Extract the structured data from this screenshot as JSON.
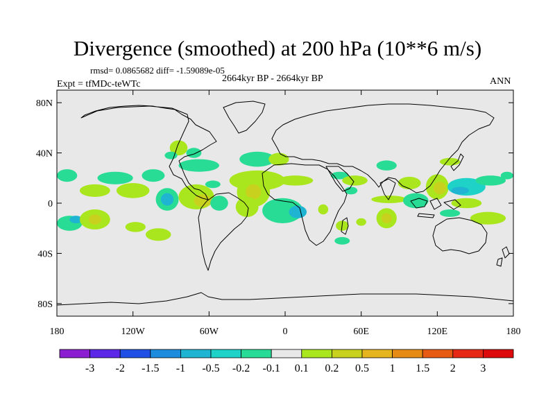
{
  "chart_data": {
    "type": "heatmap",
    "title": "Divergence (smoothed) at 200 hPa (10**6 m/s)",
    "stats_text": "rmsd= 0.0865682 diff= -1.59089e-05",
    "subtitle": "2664kyr BP - 2664kyr BP",
    "left_label": "Expt = tfMDc-teWTc",
    "right_label": "ANN",
    "x_range": [
      -180,
      180
    ],
    "y_range": [
      -90,
      90
    ],
    "x_ticks": [
      {
        "value": -180,
        "label": "180"
      },
      {
        "value": -120,
        "label": "120W"
      },
      {
        "value": -60,
        "label": "60W"
      },
      {
        "value": 0,
        "label": "0"
      },
      {
        "value": 60,
        "label": "60E"
      },
      {
        "value": 120,
        "label": "120E"
      },
      {
        "value": 180,
        "label": "180"
      }
    ],
    "y_ticks": [
      {
        "value": 80,
        "label": "80N"
      },
      {
        "value": 40,
        "label": "40N"
      },
      {
        "value": 0,
        "label": "0"
      },
      {
        "value": -40,
        "label": "40S"
      },
      {
        "value": -80,
        "label": "80S"
      }
    ],
    "colorbar": {
      "levels": [
        "-3",
        "-2",
        "-1.5",
        "-1",
        "-0.5",
        "-0.2",
        "-0.1",
        "0.1",
        "0.2",
        "0.5",
        "1",
        "1.5",
        "2",
        "3"
      ],
      "colors": [
        "#8c1ed2",
        "#5a28e6",
        "#1e50e6",
        "#1e8cdc",
        "#1eb4d2",
        "#1ed2c8",
        "#28dc96",
        "#e8e8e8",
        "#aae61e",
        "#c8d21e",
        "#e6b41e",
        "#e68c14",
        "#e65a14",
        "#e62814",
        "#dc0a0a"
      ]
    },
    "regions": [
      {
        "lon": -84,
        "lat": 44,
        "rlon": 7,
        "rlat": 6,
        "color_index": 8
      },
      {
        "lon": -90,
        "lat": 38,
        "rlon": 5,
        "rlat": 3,
        "color_index": 6
      },
      {
        "lon": -72,
        "lat": 40,
        "rlon": 6,
        "rlat": 4,
        "color_index": 6
      },
      {
        "lon": -68,
        "lat": 30,
        "rlon": 16,
        "rlat": 5,
        "color_index": 6
      },
      {
        "lon": -104,
        "lat": 22,
        "rlon": 9,
        "rlat": 5,
        "color_index": 6
      },
      {
        "lon": -134,
        "lat": 20,
        "rlon": 14,
        "rlat": 5,
        "color_index": 6
      },
      {
        "lon": -172,
        "lat": 22,
        "rlon": 8,
        "rlat": 5,
        "color_index": 6
      },
      {
        "lon": -170,
        "lat": -16,
        "rlon": 10,
        "rlat": 6,
        "color_index": 6
      },
      {
        "lon": -165,
        "lat": -13,
        "rlon": 5,
        "rlat": 3,
        "color_index": 4
      },
      {
        "lon": -150,
        "lat": -13,
        "rlon": 12,
        "rlat": 8,
        "color_index": 8
      },
      {
        "lon": -150,
        "lat": -13,
        "rlon": 5,
        "rlat": 4,
        "color_index": 9
      },
      {
        "lon": -118,
        "lat": -19,
        "rlon": 8,
        "rlat": 4,
        "color_index": 8
      },
      {
        "lon": -100,
        "lat": -25,
        "rlon": 10,
        "rlat": 5,
        "color_index": 8
      },
      {
        "lon": -150,
        "lat": 10,
        "rlon": 12,
        "rlat": 5,
        "color_index": 8
      },
      {
        "lon": -120,
        "lat": 10,
        "rlon": 13,
        "rlat": 6,
        "color_index": 8
      },
      {
        "lon": -93,
        "lat": 3,
        "rlon": 9,
        "rlat": 9,
        "color_index": 6
      },
      {
        "lon": -93,
        "lat": 3,
        "rlon": 5,
        "rlat": 5,
        "color_index": 4
      },
      {
        "lon": -70,
        "lat": 5,
        "rlon": 14,
        "rlat": 10,
        "color_index": 8
      },
      {
        "lon": -65,
        "lat": 2,
        "rlon": 7,
        "rlat": 5,
        "color_index": 9
      },
      {
        "lon": -52,
        "lat": 0,
        "rlon": 7,
        "rlat": 6,
        "color_index": 6
      },
      {
        "lon": -57,
        "lat": 15,
        "rlon": 6,
        "rlat": 3,
        "color_index": 6
      },
      {
        "lon": -22,
        "lat": 35,
        "rlon": 14,
        "rlat": 6,
        "color_index": 6
      },
      {
        "lon": -5,
        "lat": 35,
        "rlon": 8,
        "rlat": 5,
        "color_index": 8
      },
      {
        "lon": -22,
        "lat": 18,
        "rlon": 22,
        "rlat": 8,
        "color_index": 8
      },
      {
        "lon": -25,
        "lat": 9,
        "rlon": 13,
        "rlat": 12,
        "color_index": 8
      },
      {
        "lon": -25,
        "lat": 9,
        "rlon": 6,
        "rlat": 6,
        "color_index": 9
      },
      {
        "lon": -30,
        "lat": -3,
        "rlon": 9,
        "rlat": 8,
        "color_index": 8
      },
      {
        "lon": -2,
        "lat": -6,
        "rlon": 16,
        "rlat": 10,
        "color_index": 6
      },
      {
        "lon": 10,
        "lat": -7,
        "rlon": 7,
        "rlat": 5,
        "color_index": 4
      },
      {
        "lon": 8,
        "lat": 18,
        "rlon": 14,
        "rlat": 4,
        "color_index": 8
      },
      {
        "lon": 30,
        "lat": -5,
        "rlon": 4,
        "rlat": 4,
        "color_index": 8
      },
      {
        "lon": 43,
        "lat": 22,
        "rlon": 7,
        "rlat": 3,
        "color_index": 6
      },
      {
        "lon": 55,
        "lat": 18,
        "rlon": 10,
        "rlat": 4,
        "color_index": 8
      },
      {
        "lon": 52,
        "lat": 10,
        "rlon": 5,
        "rlat": 3,
        "color_index": 6
      },
      {
        "lon": 45,
        "lat": -18,
        "rlon": 5,
        "rlat": 4,
        "color_index": 8
      },
      {
        "lon": 45,
        "lat": -30,
        "rlon": 6,
        "rlat": 3,
        "color_index": 6
      },
      {
        "lon": 60,
        "lat": -15,
        "rlon": 4,
        "rlat": 3,
        "color_index": 8
      },
      {
        "lon": 80,
        "lat": -12,
        "rlon": 8,
        "rlat": 8,
        "color_index": 8
      },
      {
        "lon": 80,
        "lat": -12,
        "rlon": 4,
        "rlat": 4,
        "color_index": 9
      },
      {
        "lon": 82,
        "lat": 3,
        "rlon": 14,
        "rlat": 3,
        "color_index": 8
      },
      {
        "lon": 80,
        "lat": 30,
        "rlon": 8,
        "rlat": 4,
        "color_index": 6
      },
      {
        "lon": 98,
        "lat": 16,
        "rlon": 9,
        "rlat": 5,
        "color_index": 8
      },
      {
        "lon": 103,
        "lat": 2,
        "rlon": 10,
        "rlat": 6,
        "color_index": 6
      },
      {
        "lon": 120,
        "lat": 13,
        "rlon": 9,
        "rlat": 10,
        "color_index": 8
      },
      {
        "lon": 122,
        "lat": 12,
        "rlon": 5,
        "rlat": 5,
        "color_index": 9
      },
      {
        "lon": 130,
        "lat": 33,
        "rlon": 8,
        "rlat": 3,
        "color_index": 8
      },
      {
        "lon": 143,
        "lat": 13,
        "rlon": 15,
        "rlat": 7,
        "color_index": 5
      },
      {
        "lon": 138,
        "lat": 10,
        "rlon": 7,
        "rlat": 3,
        "color_index": 4
      },
      {
        "lon": 162,
        "lat": 18,
        "rlon": 12,
        "rlat": 4,
        "color_index": 6
      },
      {
        "lon": 143,
        "lat": 0,
        "rlon": 12,
        "rlat": 4,
        "color_index": 8
      },
      {
        "lon": 130,
        "lat": -8,
        "rlon": 8,
        "rlat": 3,
        "color_index": 6
      },
      {
        "lon": 160,
        "lat": -12,
        "rlon": 14,
        "rlat": 5,
        "color_index": 8
      },
      {
        "lon": 175,
        "lat": 22,
        "rlon": 5,
        "rlat": 3,
        "color_index": 6
      }
    ]
  }
}
